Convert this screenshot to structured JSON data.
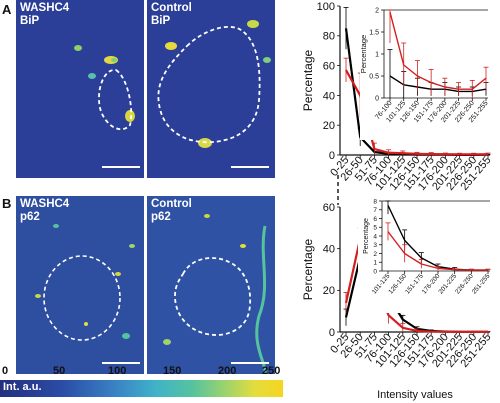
{
  "panels": {
    "a": {
      "letter": "A",
      "left_label": "WASHC4\nBiP",
      "right_label": "Control\nBiP"
    },
    "b": {
      "letter": "B",
      "left_label": "WASHC4\np62",
      "right_label": "Control\np62"
    }
  },
  "colorbar": {
    "ticks": [
      "0",
      "50",
      "100",
      "150",
      "200",
      "250"
    ],
    "label": "Int. a.u."
  },
  "colors": {
    "washc4": "#d21f1f",
    "control": "#000000"
  },
  "chart_data": [
    {
      "id": "A-main",
      "type": "line",
      "categories": [
        "0-25",
        "26-50",
        "51-75",
        "76-100",
        "101-125",
        "126-150",
        "151-175",
        "176-200",
        "201-225",
        "226-250",
        "251-255"
      ],
      "xlabel": "Intensity values",
      "ylabel": "Percentage",
      "yticks": [
        "0",
        "20",
        "40",
        "60",
        "80",
        "100"
      ],
      "ylim": [
        0,
        100
      ],
      "series": [
        {
          "color": "#000000",
          "values": [
            85,
            12,
            2,
            0.8,
            0.5,
            0.3,
            0.2,
            0.2,
            0.1,
            0.1,
            0.2
          ],
          "err": [
            14,
            6,
            2,
            1,
            1,
            0.5,
            0.5,
            0.3,
            0.3,
            0.3,
            0.3
          ]
        },
        {
          "color": "#d21f1f",
          "values": [
            57,
            40,
            4,
            1.5,
            1.2,
            0.8,
            0.6,
            0.5,
            0.4,
            0.4,
            0.5
          ],
          "err": [
            8,
            15,
            4,
            2,
            1.5,
            1,
            1,
            0.8,
            0.8,
            0.8,
            0.8
          ]
        }
      ]
    },
    {
      "id": "A-inset",
      "type": "line",
      "categories": [
        "76-100",
        "101-125",
        "126-150",
        "151-175",
        "176-200",
        "201-225",
        "226-250",
        "251-255"
      ],
      "ylabel": "Percentage",
      "yticks": [
        "0",
        "0.5",
        "1",
        "1.5",
        "2"
      ],
      "ylim": [
        0,
        2
      ],
      "series": [
        {
          "color": "#000000",
          "values": [
            0.5,
            0.3,
            0.25,
            0.2,
            0.2,
            0.15,
            0.15,
            0.2
          ],
          "err": [
            0.6,
            0.3,
            0.2,
            0.15,
            0.15,
            0.1,
            0.1,
            0.15
          ]
        },
        {
          "color": "#d21f1f",
          "values": [
            1.95,
            0.75,
            0.5,
            0.35,
            0.25,
            0.2,
            0.2,
            0.45
          ],
          "err": [
            0.7,
            0.5,
            0.35,
            0.3,
            0.2,
            0.15,
            0.2,
            0.25
          ]
        }
      ]
    },
    {
      "id": "B-main",
      "type": "line",
      "categories": [
        "0-25",
        "26-50",
        "51-75",
        "76-100",
        "101-125",
        "126-150",
        "151-175",
        "176-200",
        "201-225",
        "226-250",
        "251-255"
      ],
      "xlabel": "Intensity values",
      "ylabel": "Percentage",
      "yticks": [
        "0",
        "20",
        "40",
        "60"
      ],
      "ylim": [
        0,
        60
      ],
      "series": [
        {
          "color": "#000000",
          "values": [
            7,
            36,
            32,
            17,
            6,
            1.5,
            0.5,
            0.2,
            0.1,
            0.1,
            0.1
          ],
          "err": [
            4,
            4,
            4,
            3,
            2,
            1,
            0.5,
            0.3,
            0.2,
            0.2,
            0.2
          ]
        },
        {
          "color": "#d21f1f",
          "values": [
            14,
            45,
            24,
            8,
            2,
            0.5,
            0.2,
            0.1,
            0.1,
            0.1,
            0.1
          ],
          "err": [
            5,
            5,
            5,
            4,
            2,
            1,
            0.3,
            0.2,
            0.2,
            0.2,
            0.2
          ]
        }
      ]
    },
    {
      "id": "B-inset",
      "type": "line",
      "categories": [
        "101-125",
        "126-150",
        "151-175",
        "176-200",
        "201-225",
        "226-250",
        "251-255"
      ],
      "ylabel": "Percentage",
      "yticks": [
        "0",
        "1",
        "2",
        "3",
        "4",
        "5",
        "6",
        "7",
        "8"
      ],
      "ylim": [
        0,
        8
      ],
      "series": [
        {
          "color": "#000000",
          "values": [
            7.5,
            3.5,
            1.5,
            0.5,
            0.2,
            0.1,
            0.1
          ],
          "err": [
            1,
            1.2,
            0.6,
            0.3,
            0.2,
            0.1,
            0.1
          ]
        },
        {
          "color": "#d21f1f",
          "values": [
            4.5,
            2.0,
            0.8,
            0.3,
            0.15,
            0.1,
            0.1
          ],
          "err": [
            1,
            1,
            0.5,
            0.2,
            0.1,
            0.1,
            0.1
          ]
        }
      ]
    }
  ]
}
